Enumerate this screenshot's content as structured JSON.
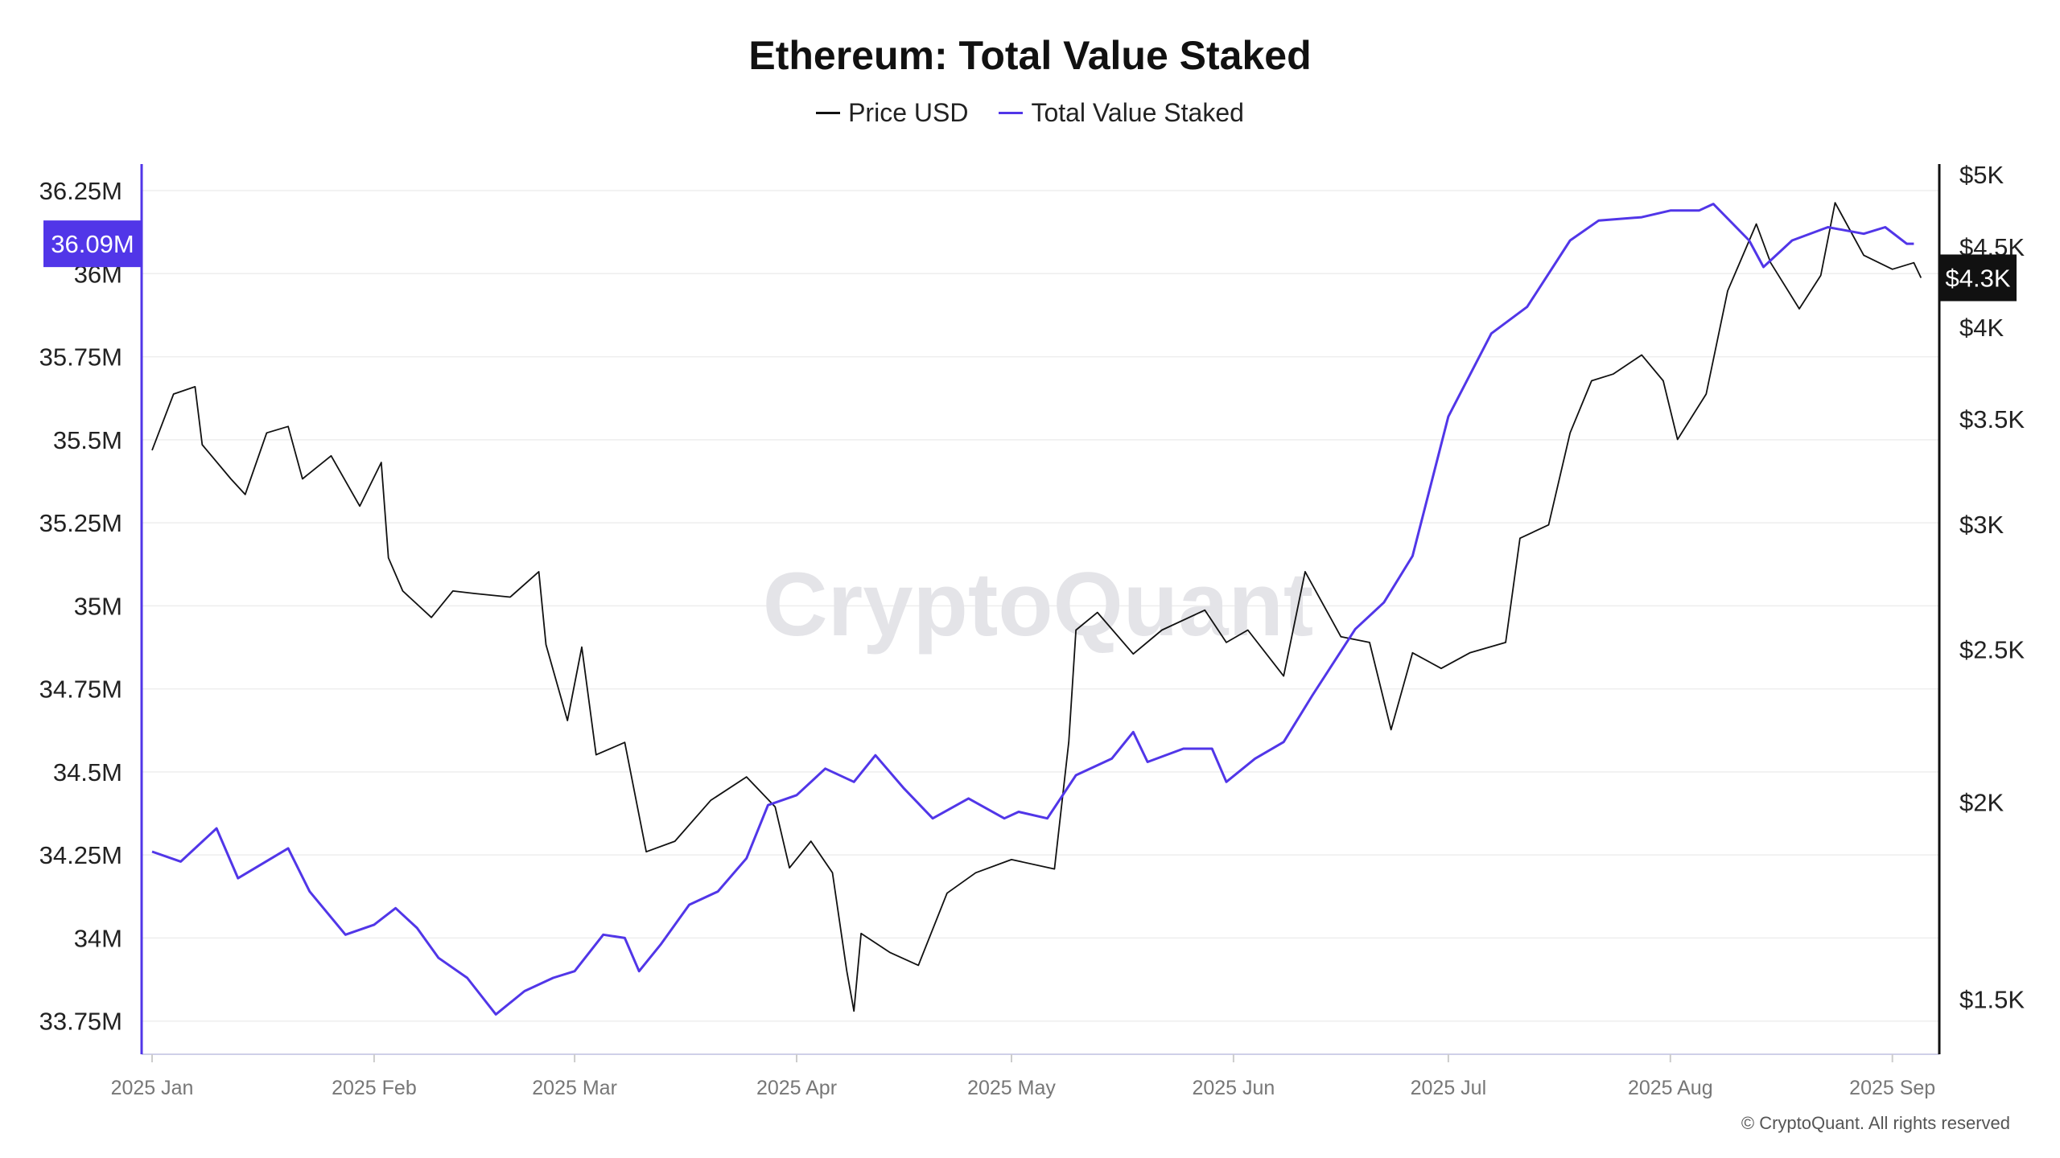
{
  "chart_data": {
    "type": "line",
    "title": "Ethereum: Total Value Staked",
    "watermark": "CryptoQuant",
    "copyright": "© CryptoQuant. All rights reserved",
    "legend_placement": "top-center",
    "grid": true,
    "x_ticks": [
      "2025-01-01",
      "2025-02-01",
      "2025-03-01",
      "2025-04-01",
      "2025-05-01",
      "2025-06-01",
      "2025-07-01",
      "2025-08-01",
      "2025-09-01"
    ],
    "x_tick_labels": [
      "2025 Jan",
      "2025 Feb",
      "2025 Mar",
      "2025 Apr",
      "2025 May",
      "2025 Jun",
      "2025 Jul",
      "2025 Aug",
      "2025 Sep"
    ],
    "xlim": [
      "2024-12-30",
      "2025-09-08"
    ],
    "left_axis": {
      "ticks": [
        33.75,
        34,
        34.25,
        34.5,
        34.75,
        35,
        35.25,
        35.5,
        35.75,
        36,
        36.25
      ],
      "tick_labels": [
        "33.75M",
        "34M",
        "34.25M",
        "34.5M",
        "34.75M",
        "35M",
        "35.25M",
        "35.5M",
        "35.75M",
        "36M",
        "36.25M"
      ],
      "ylim": [
        33.65,
        36.33
      ],
      "current_label": "36.09M",
      "unit": "M"
    },
    "right_axis": {
      "scale": "log",
      "ticks": [
        1500,
        2000,
        2500,
        3000,
        3500,
        4000,
        4500,
        5000
      ],
      "tick_labels": [
        "$1.5K",
        "$2K",
        "$2.5K",
        "$3K",
        "$3.5K",
        "$4K",
        "$4.5K",
        "$5K"
      ],
      "ylim": [
        1384,
        5077
      ],
      "current_label": "$4.3K"
    },
    "series": [
      {
        "name": "Price USD",
        "axis": "right",
        "color": "#111111",
        "points": [
          [
            "2025-01-01",
            3343
          ],
          [
            "2025-01-04",
            3629
          ],
          [
            "2025-01-07",
            3668
          ],
          [
            "2025-01-08",
            3370
          ],
          [
            "2025-01-12",
            3206
          ],
          [
            "2025-01-14",
            3134
          ],
          [
            "2025-01-17",
            3429
          ],
          [
            "2025-01-20",
            3461
          ],
          [
            "2025-01-22",
            3206
          ],
          [
            "2025-01-26",
            3316
          ],
          [
            "2025-01-30",
            3081
          ],
          [
            "2025-02-02",
            3284
          ],
          [
            "2025-02-03",
            2857
          ],
          [
            "2025-02-05",
            2722
          ],
          [
            "2025-02-09",
            2619
          ],
          [
            "2025-02-12",
            2722
          ],
          [
            "2025-02-15",
            2712
          ],
          [
            "2025-02-20",
            2698
          ],
          [
            "2025-02-24",
            2800
          ],
          [
            "2025-02-25",
            2517
          ],
          [
            "2025-02-28",
            2253
          ],
          [
            "2025-03-02",
            2508
          ],
          [
            "2025-03-04",
            2143
          ],
          [
            "2025-03-08",
            2182
          ],
          [
            "2025-03-11",
            1860
          ],
          [
            "2025-03-15",
            1889
          ],
          [
            "2025-03-20",
            2005
          ],
          [
            "2025-03-25",
            2075
          ],
          [
            "2025-03-29",
            1986
          ],
          [
            "2025-03-31",
            1817
          ],
          [
            "2025-04-03",
            1889
          ],
          [
            "2025-04-06",
            1804
          ],
          [
            "2025-04-08",
            1563
          ],
          [
            "2025-04-09",
            1474
          ],
          [
            "2025-04-10",
            1651
          ],
          [
            "2025-04-14",
            1606
          ],
          [
            "2025-04-18",
            1576
          ],
          [
            "2025-04-22",
            1751
          ],
          [
            "2025-04-26",
            1804
          ],
          [
            "2025-05-01",
            1839
          ],
          [
            "2025-05-07",
            1814
          ],
          [
            "2025-05-09",
            2184
          ],
          [
            "2025-05-10",
            2571
          ],
          [
            "2025-05-13",
            2638
          ],
          [
            "2025-05-18",
            2483
          ],
          [
            "2025-05-22",
            2571
          ],
          [
            "2025-05-28",
            2647
          ],
          [
            "2025-05-31",
            2525
          ],
          [
            "2025-06-03",
            2571
          ],
          [
            "2025-06-08",
            2404
          ],
          [
            "2025-06-11",
            2800
          ],
          [
            "2025-06-16",
            2546
          ],
          [
            "2025-06-20",
            2525
          ],
          [
            "2025-06-23",
            2223
          ],
          [
            "2025-06-26",
            2487
          ],
          [
            "2025-06-30",
            2431
          ],
          [
            "2025-07-04",
            2487
          ],
          [
            "2025-07-09",
            2525
          ],
          [
            "2025-07-11",
            2940
          ],
          [
            "2025-07-15",
            2998
          ],
          [
            "2025-07-18",
            3429
          ],
          [
            "2025-07-21",
            3700
          ],
          [
            "2025-07-24",
            3736
          ],
          [
            "2025-07-28",
            3842
          ],
          [
            "2025-07-31",
            3700
          ],
          [
            "2025-08-02",
            3396
          ],
          [
            "2025-08-06",
            3629
          ],
          [
            "2025-08-09",
            4219
          ],
          [
            "2025-08-13",
            4652
          ],
          [
            "2025-08-15",
            4396
          ],
          [
            "2025-08-19",
            4110
          ],
          [
            "2025-08-22",
            4315
          ],
          [
            "2025-08-24",
            4798
          ],
          [
            "2025-08-28",
            4444
          ],
          [
            "2025-09-01",
            4354
          ],
          [
            "2025-09-04",
            4396
          ],
          [
            "2025-09-05",
            4300
          ]
        ]
      },
      {
        "name": "Total Value Staked",
        "axis": "left",
        "color": "#5136e8",
        "points": [
          [
            "2025-01-01",
            34.26
          ],
          [
            "2025-01-05",
            34.23
          ],
          [
            "2025-01-10",
            34.33
          ],
          [
            "2025-01-13",
            34.18
          ],
          [
            "2025-01-20",
            34.27
          ],
          [
            "2025-01-23",
            34.14
          ],
          [
            "2025-01-28",
            34.01
          ],
          [
            "2025-02-01",
            34.04
          ],
          [
            "2025-02-04",
            34.09
          ],
          [
            "2025-02-07",
            34.03
          ],
          [
            "2025-02-10",
            33.94
          ],
          [
            "2025-02-14",
            33.88
          ],
          [
            "2025-02-18",
            33.77
          ],
          [
            "2025-02-22",
            33.84
          ],
          [
            "2025-02-26",
            33.88
          ],
          [
            "2025-03-01",
            33.9
          ],
          [
            "2025-03-05",
            34.01
          ],
          [
            "2025-03-08",
            34.0
          ],
          [
            "2025-03-10",
            33.9
          ],
          [
            "2025-03-13",
            33.98
          ],
          [
            "2025-03-17",
            34.1
          ],
          [
            "2025-03-21",
            34.14
          ],
          [
            "2025-03-25",
            34.24
          ],
          [
            "2025-03-28",
            34.4
          ],
          [
            "2025-04-01",
            34.43
          ],
          [
            "2025-04-05",
            34.51
          ],
          [
            "2025-04-09",
            34.47
          ],
          [
            "2025-04-12",
            34.55
          ],
          [
            "2025-04-16",
            34.45
          ],
          [
            "2025-04-20",
            34.36
          ],
          [
            "2025-04-25",
            34.42
          ],
          [
            "2025-04-30",
            34.36
          ],
          [
            "2025-05-02",
            34.38
          ],
          [
            "2025-05-06",
            34.36
          ],
          [
            "2025-05-10",
            34.49
          ],
          [
            "2025-05-15",
            34.54
          ],
          [
            "2025-05-18",
            34.62
          ],
          [
            "2025-05-20",
            34.53
          ],
          [
            "2025-05-25",
            34.57
          ],
          [
            "2025-05-29",
            34.57
          ],
          [
            "2025-05-31",
            34.47
          ],
          [
            "2025-06-04",
            34.54
          ],
          [
            "2025-06-08",
            34.59
          ],
          [
            "2025-06-12",
            34.73
          ],
          [
            "2025-06-18",
            34.93
          ],
          [
            "2025-06-22",
            35.01
          ],
          [
            "2025-06-26",
            35.15
          ],
          [
            "2025-07-01",
            35.57
          ],
          [
            "2025-07-07",
            35.82
          ],
          [
            "2025-07-12",
            35.9
          ],
          [
            "2025-07-18",
            36.1
          ],
          [
            "2025-07-22",
            36.16
          ],
          [
            "2025-07-28",
            36.17
          ],
          [
            "2025-08-01",
            36.19
          ],
          [
            "2025-08-05",
            36.19
          ],
          [
            "2025-08-07",
            36.21
          ],
          [
            "2025-08-12",
            36.1
          ],
          [
            "2025-08-14",
            36.02
          ],
          [
            "2025-08-18",
            36.1
          ],
          [
            "2025-08-23",
            36.14
          ],
          [
            "2025-08-28",
            36.12
          ],
          [
            "2025-08-31",
            36.14
          ],
          [
            "2025-09-03",
            36.09
          ],
          [
            "2025-09-04",
            36.09
          ]
        ]
      }
    ]
  }
}
